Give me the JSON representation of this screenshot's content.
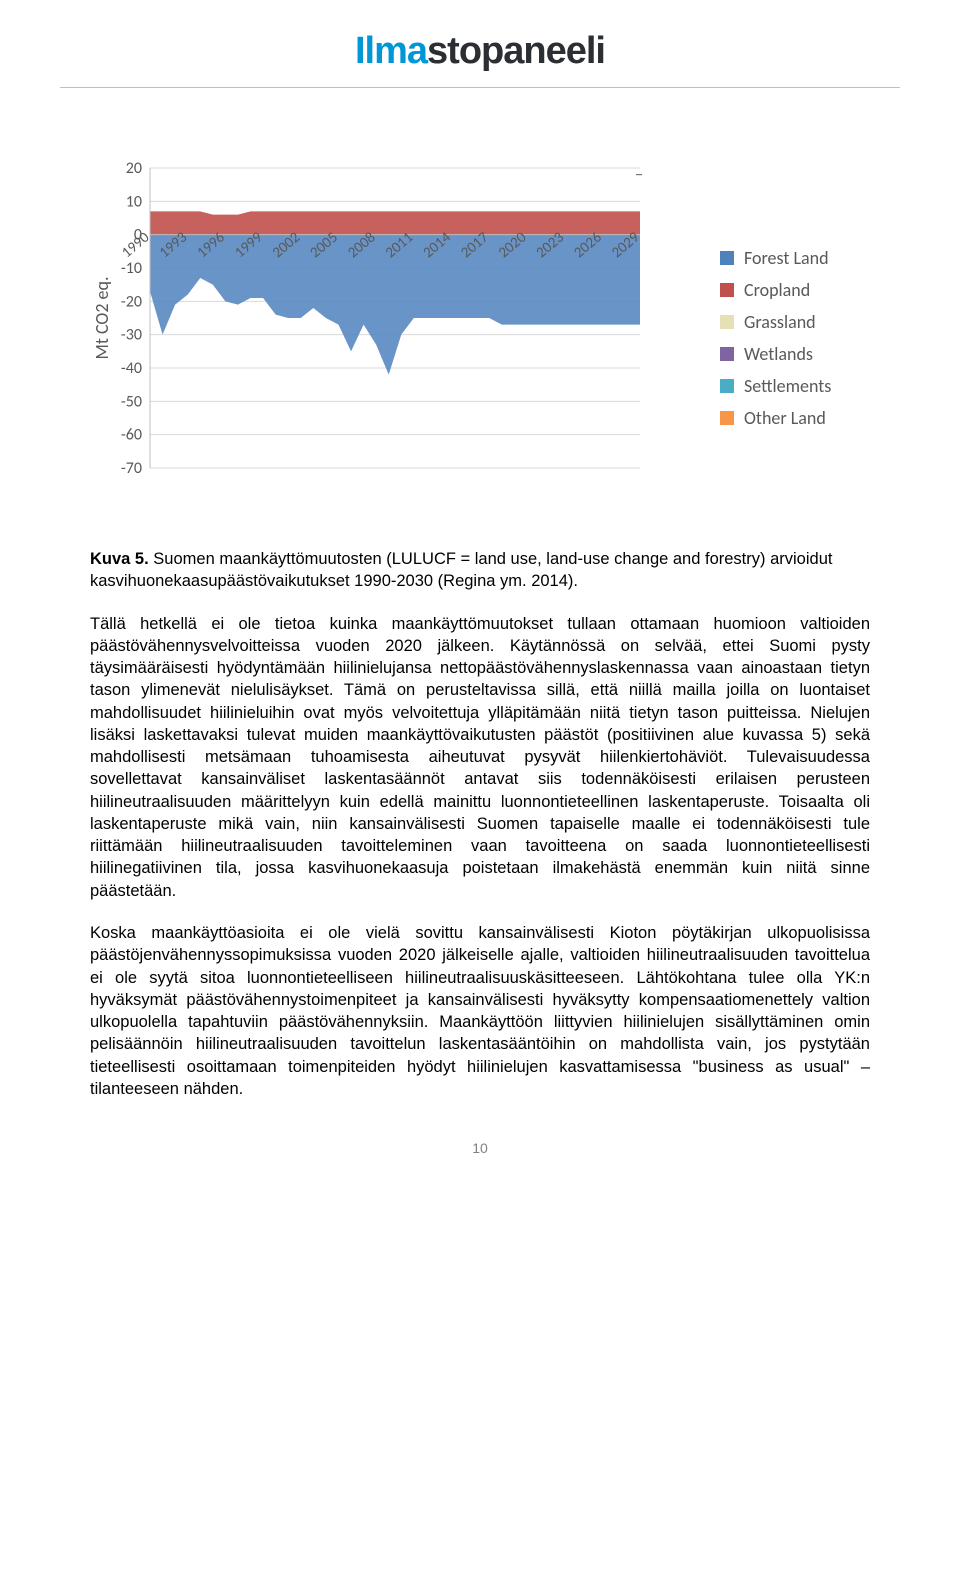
{
  "header": {
    "logo_part1": "Ilma",
    "logo_part2": "stopaneeli"
  },
  "chart": {
    "type": "stacked-area",
    "ylabel": "Mt CO2 eq.",
    "ylim": [
      -70,
      20
    ],
    "yticks": [
      20,
      10,
      0,
      -10,
      -20,
      -30,
      -40,
      -50,
      -60,
      -70
    ],
    "xticks": [
      "1990",
      "1993",
      "1996",
      "1999",
      "2002",
      "2005",
      "2008",
      "2011",
      "2014",
      "2017",
      "2020",
      "2023",
      "2026",
      "2029"
    ],
    "background_color": "#ffffff",
    "axis_color": "#bfbfbf",
    "grid_color": "#d9d9d9",
    "series": [
      {
        "name": "Forest Land",
        "color": "#4f81bd"
      },
      {
        "name": "Cropland",
        "color": "#c0504d"
      },
      {
        "name": "Grassland",
        "color": "#e6e0b4"
      },
      {
        "name": "Wetlands",
        "color": "#8064a2"
      },
      {
        "name": "Settlements",
        "color": "#4bacc6"
      },
      {
        "name": "Other Land",
        "color": "#f79646"
      }
    ],
    "cropland_top": [
      7,
      7,
      7,
      7,
      7,
      6,
      6,
      6,
      7,
      7,
      7,
      7,
      7,
      7,
      7,
      7,
      7,
      7,
      7,
      7,
      7,
      7,
      7,
      7,
      7,
      7,
      7,
      7,
      7,
      7,
      7,
      7,
      7,
      7,
      7,
      7,
      7,
      7,
      7,
      7
    ],
    "forest_bottom": [
      -17,
      -30,
      -21,
      -18,
      -13,
      -15,
      -20,
      -21,
      -19,
      -19,
      -24,
      -25,
      -25,
      -22,
      -25,
      -27,
      -35,
      -27,
      -33,
      -42,
      -30,
      -25,
      -25,
      -25,
      -25,
      -25,
      -25,
      -25,
      -27,
      -27,
      -27,
      -27,
      -27,
      -27,
      -27,
      -27,
      -27,
      -27,
      -27,
      -27
    ]
  },
  "caption": {
    "label": "Kuva 5.",
    "text": "Suomen maankäyttömuutosten (LULUCF = land use, land-use change and forestry) arvioidut kasvihuonekaasupäästövaikutukset 1990-2030 (Regina ym. 2014)."
  },
  "paragraphs": {
    "p1": "Tällä hetkellä ei ole tietoa kuinka maankäyttömuutokset tullaan ottamaan huomioon valtioiden päästövähennysvelvoitteissa vuoden 2020 jälkeen. Käytännössä on selvää, ettei Suomi pysty täysimääräisesti hyödyntämään hiilinielujansa nettopäästövähennyslaskennassa vaan ainoastaan tietyn tason ylimenevät nielulisäykset. Tämä on perusteltavissa sillä, että niillä mailla joilla on luontaiset mahdollisuudet hiilinieluihin ovat myös velvoitettuja ylläpitämään niitä tietyn tason puitteissa. Nielujen lisäksi laskettavaksi tulevat muiden maankäyttövaikutusten päästöt (positiivinen alue kuvassa 5) sekä mahdollisesti metsämaan tuhoamisesta aiheutuvat pysyvät hiilenkiertohäviöt. Tulevaisuudessa sovellettavat kansainväliset laskentasäännöt antavat siis todennäköisesti erilaisen perusteen hiilineutraalisuuden määrittelyyn kuin edellä mainittu luonnontieteellinen laskentaperuste. Toisaalta oli laskentaperuste mikä vain, niin kansainvälisesti Suomen tapaiselle maalle ei todennäköisesti tule riittämään hiilineutraalisuuden tavoitteleminen vaan tavoitteena on saada luonnontieteellisesti hiilinegatiivinen tila, jossa kasvihuonekaasuja poistetaan ilmakehästä enemmän kuin niitä sinne päästetään.",
    "p2": "Koska maankäyttöasioita ei ole vielä sovittu kansainvälisesti Kioton pöytäkirjan ulkopuolisissa päästöjenvähennyssopimuksissa vuoden 2020 jälkeiselle ajalle, valtioiden hiilineutraalisuuden tavoittelua ei ole syytä sitoa luonnontieteelliseen hiilineutraalisuuskäsitteeseen. Lähtökohtana tulee olla YK:n hyväksymät päästövähennystoimenpiteet ja kansainvälisesti hyväksytty kompensaatiomenettely valtion ulkopuolella tapahtuviin päästövähennyksiin. Maankäyttöön liittyvien hiilinielujen sisällyttäminen omin pelisäännöin hiilineutraalisuuden tavoittelun laskentasääntöihin on mahdollista vain, jos pystytään tieteellisesti osoittamaan toimenpiteiden hyödyt hiilinielujen kasvattamisessa \"business as usual\" – tilanteeseen nähden."
  },
  "page_number": "10"
}
